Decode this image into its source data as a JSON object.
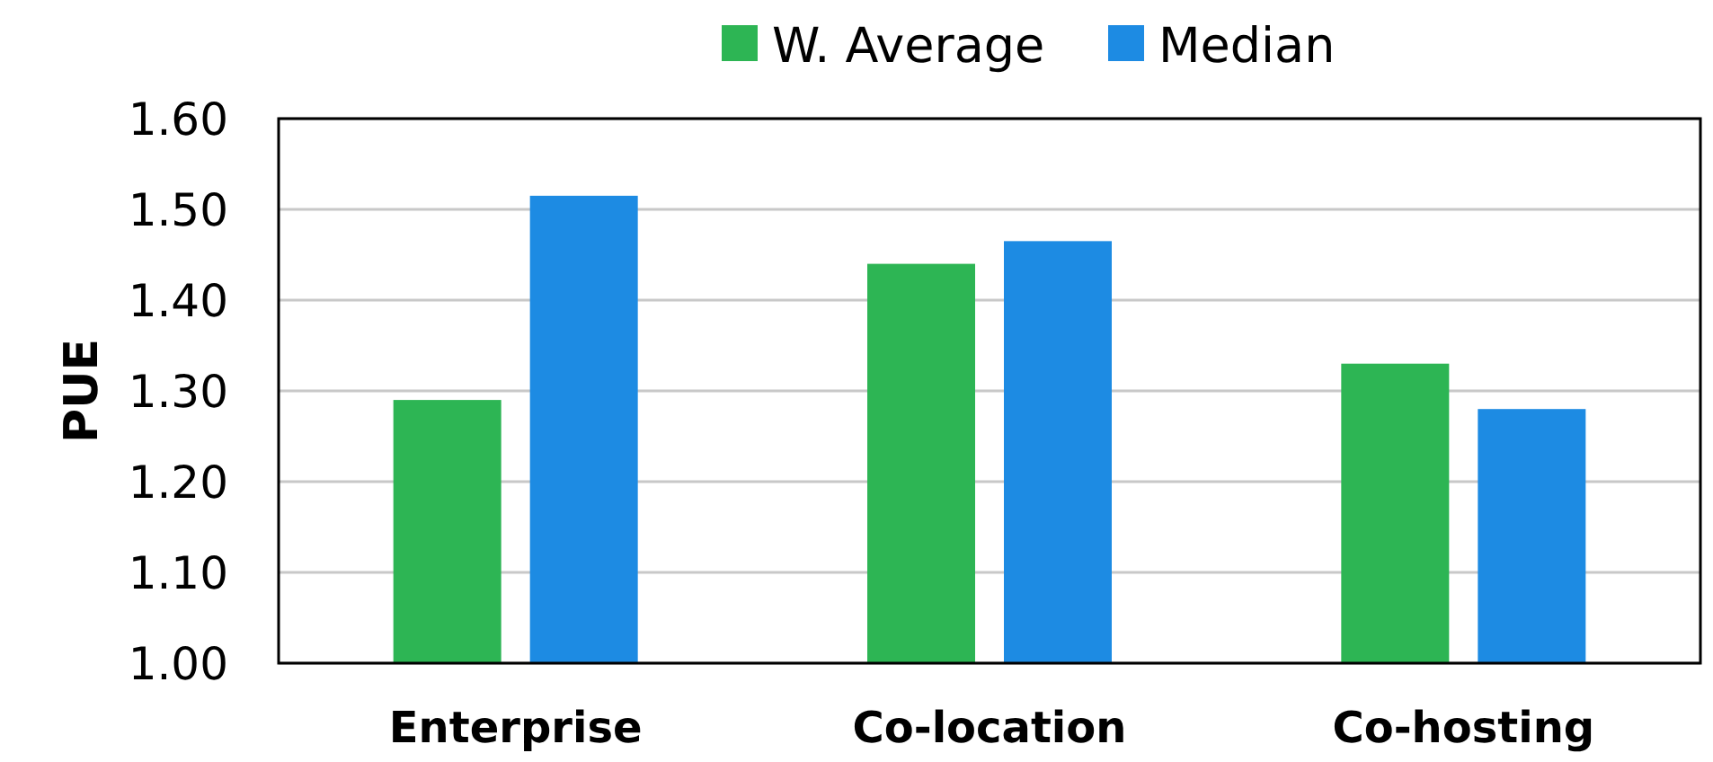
{
  "chart_data": {
    "type": "bar",
    "ylabel": "PUE",
    "categories": [
      "Enterprise",
      "Co-location",
      "Co-hosting"
    ],
    "series": [
      {
        "name": "W. Average",
        "color": "#2db554",
        "values": [
          1.29,
          1.44,
          1.33
        ]
      },
      {
        "name": "Median",
        "color": "#1d8be3",
        "values": [
          1.515,
          1.465,
          1.28
        ]
      }
    ],
    "ylim": [
      1.0,
      1.6
    ],
    "yticks": [
      {
        "value": 1.0,
        "label": "1.00"
      },
      {
        "value": 1.1,
        "label": "1.10"
      },
      {
        "value": 1.2,
        "label": "1.20"
      },
      {
        "value": 1.3,
        "label": "1.30"
      },
      {
        "value": 1.4,
        "label": "1.40"
      },
      {
        "value": 1.5,
        "label": "1.50"
      },
      {
        "value": 1.6,
        "label": "1.60"
      }
    ],
    "grid": "y",
    "legend": "top"
  }
}
